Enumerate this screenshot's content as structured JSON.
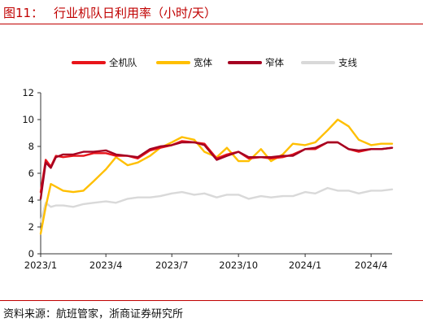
{
  "figure": {
    "label": "图11：",
    "title": "行业机队日利用率（小时/天）",
    "source": "资料来源：航班管家，浙商证券研究所"
  },
  "chart_data": {
    "type": "line",
    "ylim": [
      0,
      12
    ],
    "yticks": [
      "0",
      "2",
      "4",
      "6",
      "8",
      "10",
      "12"
    ],
    "xticks": [
      "2023/1",
      "2023/4",
      "2023/7",
      "2023/10",
      "2024/1",
      "2024/4"
    ],
    "xrange": [
      "2023-01-01",
      "2024-04-30"
    ],
    "legend_position": "top",
    "grid": false,
    "series": [
      {
        "name": "全机队",
        "color": "#e8141a",
        "points": [
          [
            "2023-01-01",
            4.6
          ],
          [
            "2023-01-08",
            7.0
          ],
          [
            "2023-01-15",
            6.5
          ],
          [
            "2023-01-22",
            7.3
          ],
          [
            "2023-02-01",
            7.2
          ],
          [
            "2023-02-15",
            7.3
          ],
          [
            "2023-03-01",
            7.3
          ],
          [
            "2023-03-15",
            7.5
          ],
          [
            "2023-04-01",
            7.5
          ],
          [
            "2023-04-15",
            7.3
          ],
          [
            "2023-05-01",
            7.3
          ],
          [
            "2023-05-15",
            7.1
          ],
          [
            "2023-06-01",
            7.7
          ],
          [
            "2023-06-15",
            7.9
          ],
          [
            "2023-07-01",
            8.1
          ],
          [
            "2023-07-15",
            8.4
          ],
          [
            "2023-08-01",
            8.3
          ],
          [
            "2023-08-15",
            8.2
          ],
          [
            "2023-09-01",
            7.1
          ],
          [
            "2023-09-15",
            7.4
          ],
          [
            "2023-10-01",
            7.6
          ],
          [
            "2023-10-15",
            7.1
          ],
          [
            "2023-11-01",
            7.2
          ],
          [
            "2023-11-15",
            7.1
          ],
          [
            "2023-12-01",
            7.2
          ],
          [
            "2023-12-15",
            7.4
          ],
          [
            "2024-01-01",
            7.8
          ],
          [
            "2024-01-15",
            7.8
          ],
          [
            "2024-02-01",
            8.3
          ],
          [
            "2024-02-15",
            8.3
          ],
          [
            "2024-03-01",
            7.8
          ],
          [
            "2024-03-15",
            7.6
          ],
          [
            "2024-04-01",
            7.8
          ],
          [
            "2024-04-15",
            7.8
          ],
          [
            "2024-04-30",
            7.9
          ]
        ]
      },
      {
        "name": "宽体",
        "color": "#ffbf00",
        "points": [
          [
            "2023-01-01",
            1.5
          ],
          [
            "2023-01-08",
            3.5
          ],
          [
            "2023-01-15",
            5.2
          ],
          [
            "2023-01-22",
            5.0
          ],
          [
            "2023-02-01",
            4.7
          ],
          [
            "2023-02-15",
            4.6
          ],
          [
            "2023-03-01",
            4.7
          ],
          [
            "2023-03-15",
            5.4
          ],
          [
            "2023-04-01",
            6.3
          ],
          [
            "2023-04-15",
            7.2
          ],
          [
            "2023-05-01",
            6.6
          ],
          [
            "2023-05-15",
            6.8
          ],
          [
            "2023-06-01",
            7.3
          ],
          [
            "2023-06-15",
            7.9
          ],
          [
            "2023-07-01",
            8.3
          ],
          [
            "2023-07-15",
            8.7
          ],
          [
            "2023-08-01",
            8.5
          ],
          [
            "2023-08-15",
            7.6
          ],
          [
            "2023-09-01",
            7.2
          ],
          [
            "2023-09-15",
            7.9
          ],
          [
            "2023-10-01",
            6.9
          ],
          [
            "2023-10-15",
            6.9
          ],
          [
            "2023-11-01",
            7.8
          ],
          [
            "2023-11-15",
            6.9
          ],
          [
            "2023-12-01",
            7.4
          ],
          [
            "2023-12-15",
            8.2
          ],
          [
            "2024-01-01",
            8.1
          ],
          [
            "2024-01-15",
            8.3
          ],
          [
            "2024-02-01",
            9.2
          ],
          [
            "2024-02-15",
            10.0
          ],
          [
            "2024-03-01",
            9.5
          ],
          [
            "2024-03-15",
            8.5
          ],
          [
            "2024-04-01",
            8.1
          ],
          [
            "2024-04-15",
            8.2
          ],
          [
            "2024-04-30",
            8.2
          ]
        ]
      },
      {
        "name": "窄体",
        "color": "#a50021",
        "points": [
          [
            "2023-01-01",
            4.1
          ],
          [
            "2023-01-08",
            6.8
          ],
          [
            "2023-01-15",
            6.4
          ],
          [
            "2023-01-22",
            7.2
          ],
          [
            "2023-02-01",
            7.4
          ],
          [
            "2023-02-15",
            7.4
          ],
          [
            "2023-03-01",
            7.6
          ],
          [
            "2023-03-15",
            7.6
          ],
          [
            "2023-04-01",
            7.7
          ],
          [
            "2023-04-15",
            7.4
          ],
          [
            "2023-05-01",
            7.3
          ],
          [
            "2023-05-15",
            7.2
          ],
          [
            "2023-06-01",
            7.8
          ],
          [
            "2023-06-15",
            8.0
          ],
          [
            "2023-07-01",
            8.1
          ],
          [
            "2023-07-15",
            8.3
          ],
          [
            "2023-08-01",
            8.3
          ],
          [
            "2023-08-15",
            8.1
          ],
          [
            "2023-09-01",
            7.0
          ],
          [
            "2023-09-15",
            7.3
          ],
          [
            "2023-10-01",
            7.6
          ],
          [
            "2023-10-15",
            7.2
          ],
          [
            "2023-11-01",
            7.2
          ],
          [
            "2023-11-15",
            7.2
          ],
          [
            "2023-12-01",
            7.3
          ],
          [
            "2023-12-15",
            7.3
          ],
          [
            "2024-01-01",
            7.8
          ],
          [
            "2024-01-15",
            7.9
          ],
          [
            "2024-02-01",
            8.3
          ],
          [
            "2024-02-15",
            8.3
          ],
          [
            "2024-03-01",
            7.8
          ],
          [
            "2024-03-15",
            7.7
          ],
          [
            "2024-04-01",
            7.8
          ],
          [
            "2024-04-15",
            7.8
          ],
          [
            "2024-04-30",
            7.9
          ]
        ]
      },
      {
        "name": "支线",
        "color": "#d9d9d9",
        "points": [
          [
            "2023-01-01",
            2.4
          ],
          [
            "2023-01-08",
            3.8
          ],
          [
            "2023-01-15",
            3.5
          ],
          [
            "2023-01-22",
            3.6
          ],
          [
            "2023-02-01",
            3.6
          ],
          [
            "2023-02-15",
            3.5
          ],
          [
            "2023-03-01",
            3.7
          ],
          [
            "2023-03-15",
            3.8
          ],
          [
            "2023-04-01",
            3.9
          ],
          [
            "2023-04-15",
            3.8
          ],
          [
            "2023-05-01",
            4.1
          ],
          [
            "2023-05-15",
            4.2
          ],
          [
            "2023-06-01",
            4.2
          ],
          [
            "2023-06-15",
            4.3
          ],
          [
            "2023-07-01",
            4.5
          ],
          [
            "2023-07-15",
            4.6
          ],
          [
            "2023-08-01",
            4.4
          ],
          [
            "2023-08-15",
            4.5
          ],
          [
            "2023-09-01",
            4.2
          ],
          [
            "2023-09-15",
            4.4
          ],
          [
            "2023-10-01",
            4.4
          ],
          [
            "2023-10-15",
            4.1
          ],
          [
            "2023-11-01",
            4.3
          ],
          [
            "2023-11-15",
            4.2
          ],
          [
            "2023-12-01",
            4.3
          ],
          [
            "2023-12-15",
            4.3
          ],
          [
            "2024-01-01",
            4.6
          ],
          [
            "2024-01-15",
            4.5
          ],
          [
            "2024-02-01",
            4.9
          ],
          [
            "2024-02-15",
            4.7
          ],
          [
            "2024-03-01",
            4.7
          ],
          [
            "2024-03-15",
            4.5
          ],
          [
            "2024-04-01",
            4.7
          ],
          [
            "2024-04-15",
            4.7
          ],
          [
            "2024-04-30",
            4.8
          ]
        ]
      }
    ]
  }
}
